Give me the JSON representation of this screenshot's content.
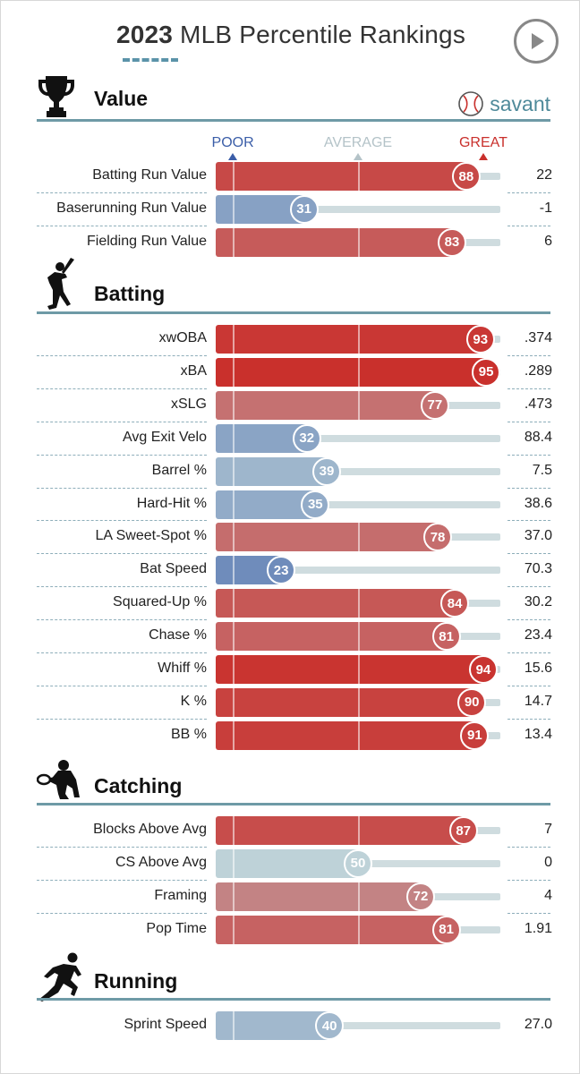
{
  "header": {
    "year": "2023",
    "title": "MLB Percentile Rankings"
  },
  "logo": {
    "text": "savant"
  },
  "scale": {
    "poor": "POOR",
    "average": "AVERAGE",
    "great": "GREAT"
  },
  "colors": {
    "great": "#c9302c",
    "poor": "#3b5ea8",
    "average": "#b4ccd4",
    "track": "#cfdcdf",
    "rule": "#6e9aa6"
  },
  "chart_data": {
    "type": "bar",
    "title": "2023 MLB Percentile Rankings",
    "xlim": [
      0,
      100
    ],
    "scale_labels": [
      "POOR",
      "AVERAGE",
      "GREAT"
    ],
    "sections": [
      {
        "id": "value",
        "name": "Value",
        "icon": "trophy-icon",
        "metrics": [
          {
            "label": "Batting Run Value",
            "percentile": 88,
            "value": "22"
          },
          {
            "label": "Baserunning Run Value",
            "percentile": 31,
            "value": "-1"
          },
          {
            "label": "Fielding Run Value",
            "percentile": 83,
            "value": "6"
          }
        ]
      },
      {
        "id": "batting",
        "name": "Batting",
        "icon": "batter-icon",
        "metrics": [
          {
            "label": "xwOBA",
            "percentile": 93,
            "value": ".374"
          },
          {
            "label": "xBA",
            "percentile": 95,
            "value": ".289"
          },
          {
            "label": "xSLG",
            "percentile": 77,
            "value": ".473"
          },
          {
            "label": "Avg Exit Velo",
            "percentile": 32,
            "value": "88.4"
          },
          {
            "label": "Barrel %",
            "percentile": 39,
            "value": "7.5"
          },
          {
            "label": "Hard-Hit %",
            "percentile": 35,
            "value": "38.6"
          },
          {
            "label": "LA Sweet-Spot %",
            "percentile": 78,
            "value": "37.0"
          },
          {
            "label": "Bat Speed",
            "percentile": 23,
            "value": "70.3"
          },
          {
            "label": "Squared-Up %",
            "percentile": 84,
            "value": "30.2"
          },
          {
            "label": "Chase %",
            "percentile": 81,
            "value": "23.4"
          },
          {
            "label": "Whiff %",
            "percentile": 94,
            "value": "15.6"
          },
          {
            "label": "K %",
            "percentile": 90,
            "value": "14.7"
          },
          {
            "label": "BB %",
            "percentile": 91,
            "value": "13.4"
          }
        ]
      },
      {
        "id": "catching",
        "name": "Catching",
        "icon": "catcher-icon",
        "metrics": [
          {
            "label": "Blocks Above Avg",
            "percentile": 87,
            "value": "7"
          },
          {
            "label": "CS Above Avg",
            "percentile": 50,
            "value": "0"
          },
          {
            "label": "Framing",
            "percentile": 72,
            "value": "4"
          },
          {
            "label": "Pop Time",
            "percentile": 81,
            "value": "1.91"
          }
        ]
      },
      {
        "id": "running",
        "name": "Running",
        "icon": "runner-icon",
        "metrics": [
          {
            "label": "Sprint Speed",
            "percentile": 40,
            "value": "27.0"
          }
        ]
      }
    ]
  }
}
